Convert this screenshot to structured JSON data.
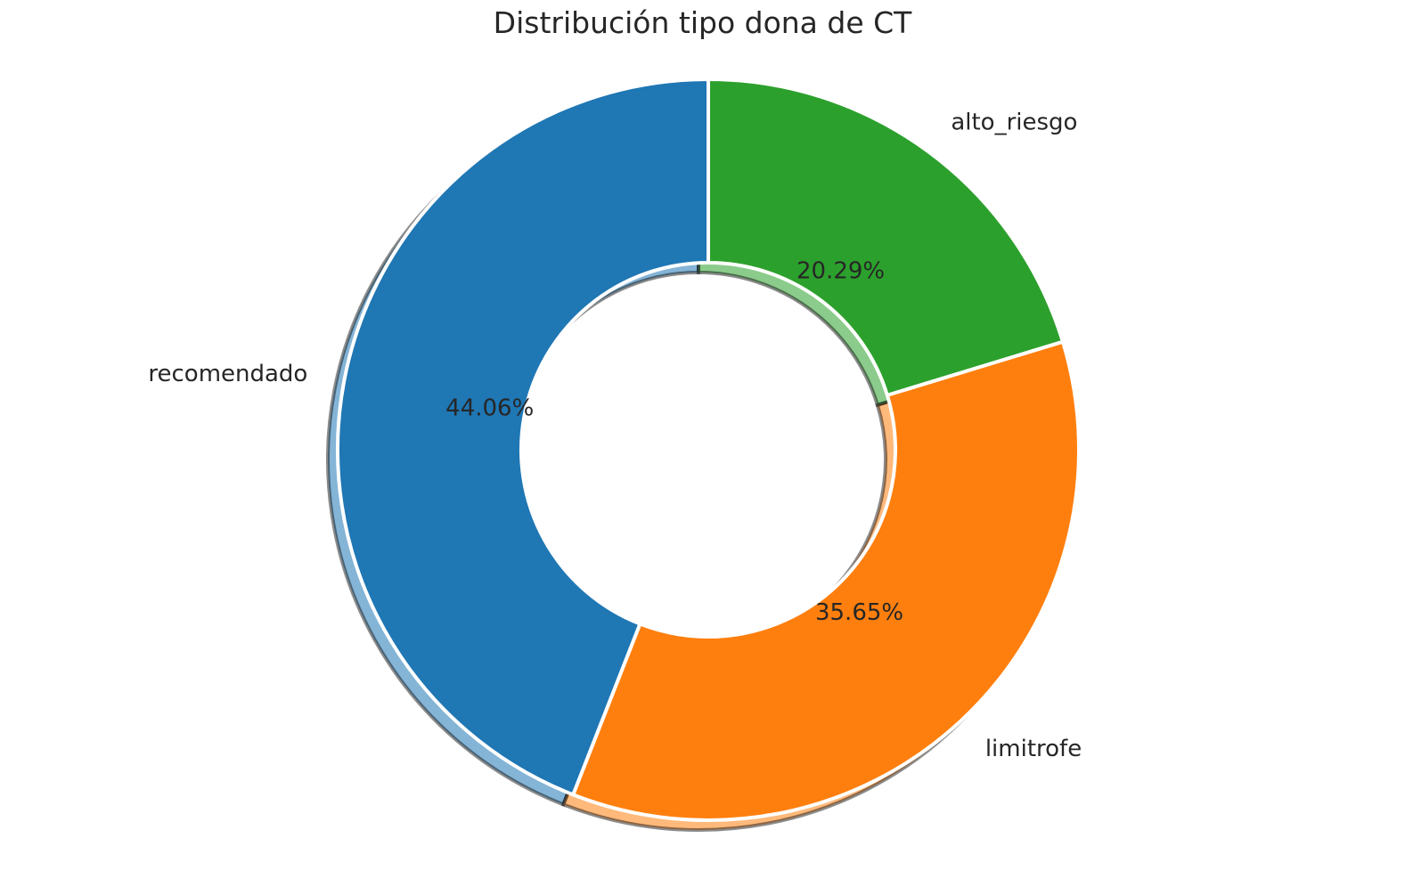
{
  "chart_data": {
    "type": "pie",
    "donut": true,
    "title": "Distribución tipo dona de CT",
    "categories": [
      "recomendado",
      "limitrofe",
      "alto_riesgo"
    ],
    "values": [
      44.06,
      35.65,
      20.29
    ],
    "value_labels": [
      "44.06%",
      "35.65%",
      "20.29%"
    ],
    "colors": [
      "#1f77b4",
      "#ff7f0e",
      "#2ca02c"
    ],
    "start_angle_deg": 90,
    "direction": "counterclockwise",
    "shadow": true,
    "legend": "none"
  }
}
